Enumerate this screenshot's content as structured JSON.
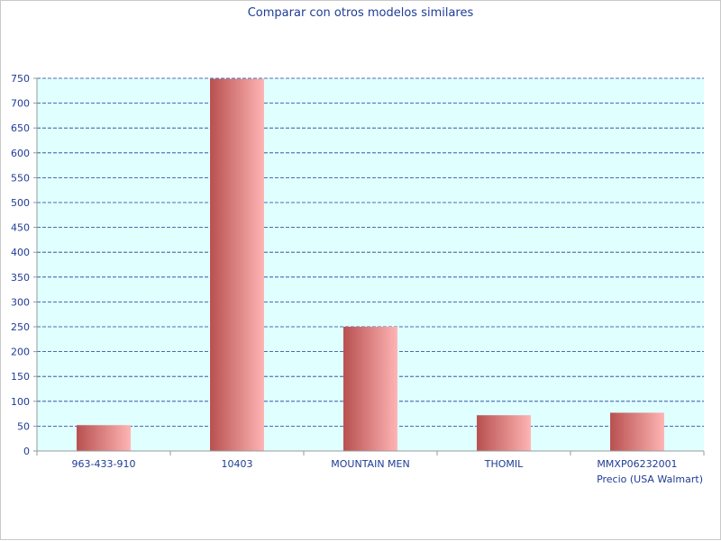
{
  "chart_data": {
    "type": "bar",
    "title": "Comparar con otros modelos similares",
    "xlabel": "Precio (USA Walmart)",
    "ylabel": "",
    "categories": [
      "963-433-910",
      "10403",
      "MOUNTAIN MEN",
      "THOMIL",
      "MMXP06232001"
    ],
    "series": [
      {
        "values": [
          52,
          749,
          250,
          72,
          77
        ]
      }
    ],
    "ylim": [
      0,
      750
    ],
    "yticks": [
      0,
      50,
      100,
      150,
      200,
      250,
      300,
      350,
      400,
      450,
      500,
      550,
      600,
      650,
      700,
      750
    ],
    "grid": true,
    "legend": "none",
    "colors": {
      "plot_background": "#e0ffff",
      "gridline": "#1e3c96",
      "text": "#1e3c96",
      "bar_dark": "#b85050",
      "bar_light": "#ffb4b4"
    }
  }
}
